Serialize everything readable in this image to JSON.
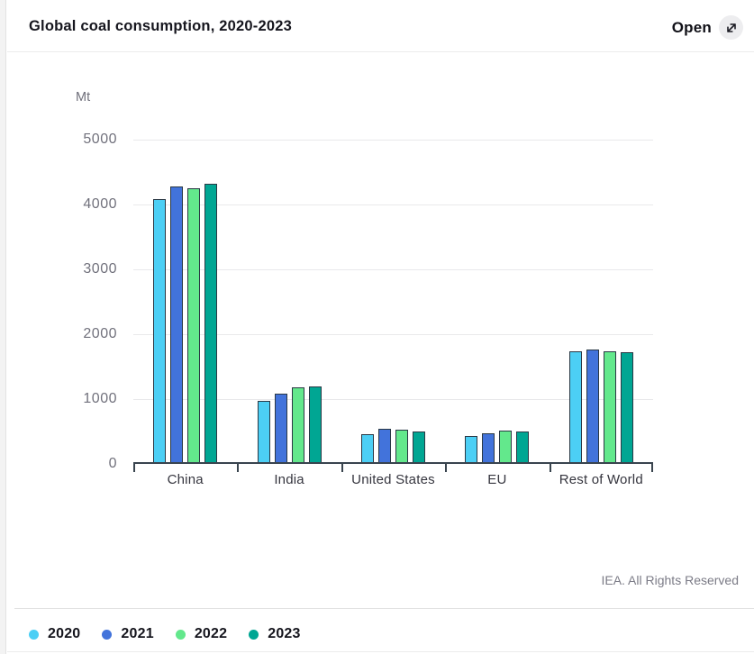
{
  "header": {
    "title": "Global coal consumption, 2020-2023",
    "open_label": "Open",
    "open_icon": "expand-diagonal-icon"
  },
  "chart_data": {
    "type": "bar",
    "title": "Global coal consumption, 2020-2023",
    "unit_label": "Mt",
    "xlabel": "",
    "ylabel": "Mt",
    "categories": [
      "China",
      "India",
      "United States",
      "EU",
      "Rest of World"
    ],
    "series": [
      {
        "name": "2020",
        "color": "#4CCFF5",
        "values": [
          4060,
          940,
          430,
          400,
          1710
        ]
      },
      {
        "name": "2021",
        "color": "#4273DB",
        "values": [
          4250,
          1050,
          510,
          445,
          1730
        ]
      },
      {
        "name": "2022",
        "color": "#63E88C",
        "values": [
          4220,
          1150,
          495,
          490,
          1710
        ]
      },
      {
        "name": "2023",
        "color": "#00A693",
        "values": [
          4290,
          1170,
          470,
          470,
          1695
        ]
      }
    ],
    "y_ticks": [
      0,
      1000,
      2000,
      3000,
      4000,
      5000
    ],
    "ylim": [
      0,
      5000
    ],
    "grid": true,
    "legend_position": "bottom",
    "bar_outline_color": "#2A3844",
    "gridline_color": "#E9E9EB",
    "axis_color": "#39444E"
  },
  "footer": {
    "credit": "IEA. All Rights Reserved"
  }
}
